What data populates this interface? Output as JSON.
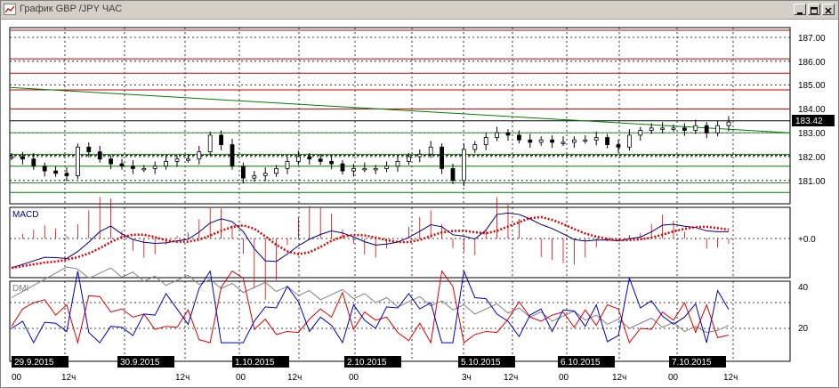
{
  "window": {
    "title": "График GBP /JPY  ЧАС",
    "buttons": [
      "minimize",
      "maximize",
      "close"
    ]
  },
  "panels": {
    "price": {
      "last_price": "183.42",
      "ticks": [
        "187.00",
        "186.00",
        "185.00",
        "184.00",
        "183.00",
        "182.00",
        "181.00"
      ]
    },
    "macd": {
      "label": "MACD",
      "zero_label": "+0.0"
    },
    "dmi": {
      "label": "DMI",
      "ticks": [
        "40",
        "20"
      ]
    }
  },
  "time_axis": {
    "dates": [
      "29.9.2015",
      "30.9.2015",
      "1.10.2015",
      "2.10.2015",
      "5.10.2015",
      "6.10.2015",
      "7.10.2015"
    ],
    "hours": [
      "00",
      "12ч",
      "12ч",
      "00",
      "12ч",
      "00",
      "3ч",
      "12ч",
      "00",
      "12ч",
      "00",
      "12ч"
    ]
  },
  "colors": {
    "candle": "#000000",
    "trendline": "#008000",
    "red_levels": "#c00000",
    "green_levels": "#008000",
    "macd_line": "#000080",
    "macd_signal": "#e00000",
    "dmi_plus": "#0000c0",
    "dmi_minus": "#e00000",
    "adx": "#808080"
  },
  "chart_data": {
    "type": "candlestick",
    "symbol": "GBP/JPY",
    "timeframe": "H1",
    "title": "График GBP /JPY  ЧАС",
    "ylim": [
      180.3,
      187.3
    ],
    "price_series": [
      182.0,
      181.9,
      181.6,
      181.4,
      181.3,
      181.2,
      182.4,
      182.2,
      181.9,
      181.7,
      181.6,
      181.5,
      181.5,
      181.6,
      181.8,
      181.9,
      181.9,
      182.2,
      182.9,
      182.5,
      181.6,
      181.1,
      181.2,
      181.3,
      181.5,
      181.8,
      182.0,
      181.9,
      181.8,
      181.7,
      181.4,
      181.5,
      181.5,
      181.5,
      181.6,
      181.8,
      182.0,
      182.1,
      182.4,
      181.5,
      181.0,
      182.3,
      182.5,
      182.8,
      183.0,
      182.9,
      182.7,
      182.6,
      182.7,
      182.6,
      182.6,
      182.7,
      182.7,
      182.8,
      182.5,
      182.4,
      182.9,
      183.1,
      183.2,
      183.2,
      183.2,
      183.1,
      183.3,
      183.0,
      183.3,
      183.45
    ]
  }
}
